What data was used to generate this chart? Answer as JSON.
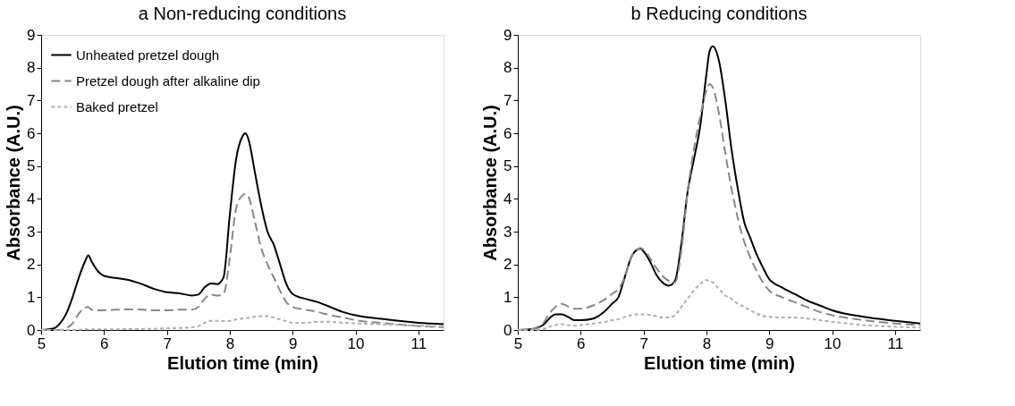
{
  "chart_data": [
    {
      "type": "line",
      "title": "a Non-reducing conditions",
      "xlabel": "Elution time (min)",
      "ylabel": "Absorbance (A.U.)",
      "x": [
        5,
        5.2,
        5.3,
        5.4,
        5.5,
        5.6,
        5.7,
        5.75,
        5.8,
        5.9,
        6,
        6.2,
        6.4,
        6.6,
        6.8,
        7,
        7.2,
        7.4,
        7.5,
        7.6,
        7.7,
        7.8,
        7.9,
        8,
        8.1,
        8.2,
        8.25,
        8.3,
        8.4,
        8.5,
        8.6,
        8.7,
        8.8,
        8.9,
        9,
        9.2,
        9.4,
        9.6,
        9.8,
        10,
        10.5,
        11,
        11.4
      ],
      "series": [
        {
          "name": "Unheated pretzel dough",
          "color": "#000000",
          "line_style": "solid",
          "values": [
            0,
            0.05,
            0.2,
            0.5,
            1.0,
            1.6,
            2.1,
            2.28,
            2.1,
            1.8,
            1.65,
            1.58,
            1.52,
            1.4,
            1.25,
            1.15,
            1.12,
            1.05,
            1.08,
            1.3,
            1.42,
            1.4,
            1.6,
            3.5,
            5.2,
            5.9,
            6.0,
            5.8,
            4.8,
            3.8,
            3.0,
            2.6,
            2.0,
            1.4,
            1.1,
            0.95,
            0.85,
            0.7,
            0.55,
            0.45,
            0.32,
            0.22,
            0.18
          ]
        },
        {
          "name": "Pretzel dough after alkaline dip",
          "color": "#888888",
          "line_style": "dashed",
          "values": [
            0,
            0,
            0,
            0.05,
            0.2,
            0.5,
            0.68,
            0.7,
            0.62,
            0.6,
            0.6,
            0.62,
            0.63,
            0.62,
            0.6,
            0.6,
            0.62,
            0.62,
            0.7,
            0.95,
            1.08,
            1.05,
            1.1,
            2.2,
            3.7,
            4.1,
            4.15,
            4.05,
            3.3,
            2.5,
            2.0,
            1.6,
            1.2,
            0.85,
            0.7,
            0.62,
            0.55,
            0.45,
            0.38,
            0.3,
            0.2,
            0.12,
            0.08
          ]
        },
        {
          "name": "Baked pretzel",
          "color": "#b0b0b0",
          "line_style": "dotted",
          "values": [
            0,
            0,
            0,
            0,
            0,
            0.01,
            0.02,
            0.02,
            0.02,
            0.02,
            0.02,
            0.02,
            0.03,
            0.03,
            0.04,
            0.05,
            0.06,
            0.08,
            0.12,
            0.22,
            0.28,
            0.28,
            0.27,
            0.28,
            0.32,
            0.35,
            0.36,
            0.37,
            0.4,
            0.42,
            0.42,
            0.38,
            0.32,
            0.27,
            0.22,
            0.22,
            0.25,
            0.25,
            0.22,
            0.2,
            0.17,
            0.13,
            0.1
          ]
        }
      ],
      "xlim": [
        5,
        11.4
      ],
      "xticks": [
        5,
        6,
        7,
        8,
        9,
        10,
        11
      ],
      "ylim": [
        0,
        9
      ],
      "yticks": [
        0,
        1,
        2,
        3,
        4,
        5,
        6,
        7,
        8,
        9
      ],
      "grid": false,
      "legend": "top left"
    },
    {
      "type": "line",
      "title": "b Reducing conditions",
      "xlabel": "Elution time (min)",
      "ylabel": "Absorbance (A.U.)",
      "x": [
        5,
        5.2,
        5.4,
        5.5,
        5.6,
        5.7,
        5.8,
        5.9,
        6,
        6.2,
        6.4,
        6.5,
        6.6,
        6.7,
        6.8,
        6.9,
        6.95,
        7,
        7.1,
        7.2,
        7.3,
        7.4,
        7.5,
        7.6,
        7.7,
        7.8,
        7.9,
        8,
        8.05,
        8.1,
        8.2,
        8.3,
        8.4,
        8.5,
        8.6,
        8.7,
        8.8,
        8.9,
        9,
        9.2,
        9.4,
        9.6,
        9.8,
        10,
        10.5,
        11,
        11.4
      ],
      "series": [
        {
          "color": "#000000",
          "line_style": "solid",
          "values": [
            0,
            0.02,
            0.15,
            0.35,
            0.48,
            0.48,
            0.4,
            0.3,
            0.3,
            0.35,
            0.6,
            0.8,
            1.0,
            1.6,
            2.2,
            2.45,
            2.48,
            2.4,
            2.1,
            1.7,
            1.45,
            1.35,
            1.5,
            2.6,
            4.2,
            5.2,
            6.2,
            7.8,
            8.5,
            8.65,
            8.2,
            7.0,
            5.5,
            4.3,
            3.3,
            2.8,
            2.3,
            1.9,
            1.55,
            1.3,
            1.1,
            0.9,
            0.75,
            0.6,
            0.4,
            0.28,
            0.2
          ]
        },
        {
          "color": "#888888",
          "line_style": "dashed",
          "values": [
            0,
            0.02,
            0.2,
            0.5,
            0.7,
            0.8,
            0.72,
            0.65,
            0.65,
            0.75,
            0.95,
            1.1,
            1.25,
            1.6,
            2.2,
            2.45,
            2.5,
            2.45,
            2.2,
            1.9,
            1.65,
            1.5,
            1.45,
            2.4,
            4.2,
            5.5,
            6.5,
            7.3,
            7.5,
            7.4,
            6.6,
            5.4,
            4.3,
            3.4,
            2.7,
            2.2,
            1.8,
            1.45,
            1.2,
            1.0,
            0.85,
            0.7,
            0.55,
            0.45,
            0.3,
            0.2,
            0.15
          ]
        },
        {
          "color": "#b0b0b0",
          "line_style": "dotted",
          "values": [
            0,
            0,
            0.02,
            0.1,
            0.15,
            0.18,
            0.15,
            0.13,
            0.15,
            0.2,
            0.25,
            0.3,
            0.33,
            0.4,
            0.45,
            0.48,
            0.48,
            0.48,
            0.46,
            0.42,
            0.38,
            0.38,
            0.45,
            0.7,
            0.95,
            1.2,
            1.4,
            1.52,
            1.5,
            1.45,
            1.25,
            1.05,
            0.95,
            0.8,
            0.7,
            0.6,
            0.5,
            0.43,
            0.4,
            0.38,
            0.38,
            0.35,
            0.3,
            0.25,
            0.15,
            0.1,
            0.07
          ]
        }
      ],
      "xlim": [
        5,
        11.4
      ],
      "xticks": [
        5,
        6,
        7,
        8,
        9,
        10,
        11
      ],
      "ylim": [
        0,
        9
      ],
      "yticks": [
        0,
        1,
        2,
        3,
        4,
        5,
        6,
        7,
        8,
        9
      ],
      "grid": false
    }
  ]
}
